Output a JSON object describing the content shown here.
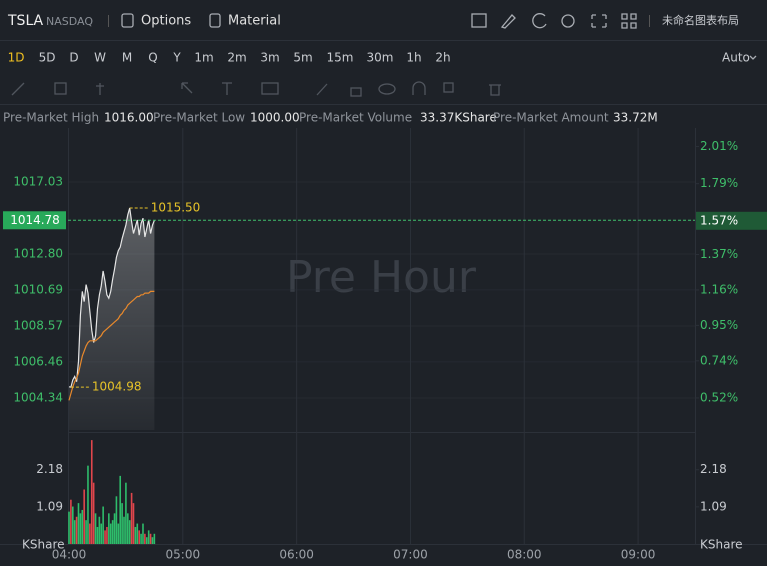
{
  "header": {
    "symbol": "TSLA",
    "exchange": "NASDAQ",
    "buttons": [
      "Options",
      "Material"
    ],
    "layout_name": "未命名图表布局"
  },
  "timeframes": {
    "items": [
      "1D",
      "5D",
      "D",
      "W",
      "M",
      "Q",
      "Y",
      "1m",
      "2m",
      "3m",
      "5m",
      "15m",
      "30m",
      "1h",
      "2h"
    ],
    "scale_mode": "Auto"
  },
  "info": [
    {
      "label": "Pre-Market High",
      "value": "1016.00"
    },
    {
      "label": "Pre-Market Low",
      "value": "1000.00"
    },
    {
      "label": "Pre-Market Volume",
      "value": "33.37KShare"
    },
    {
      "label": "Pre-Market Amount",
      "value": "33.72M"
    }
  ],
  "chart_data": {
    "type": "line",
    "watermark": "Pre Hour",
    "x": [
      "04:00",
      "04:01",
      "04:02",
      "04:03",
      "04:04",
      "04:05",
      "04:06",
      "04:07",
      "04:08",
      "04:09",
      "04:10",
      "04:11",
      "04:12",
      "04:13",
      "04:14",
      "04:15",
      "04:16",
      "04:17",
      "04:18",
      "04:19",
      "04:20",
      "04:21",
      "04:22",
      "04:23",
      "04:24",
      "04:25",
      "04:26",
      "04:27",
      "04:28",
      "04:29",
      "04:30",
      "04:31",
      "04:32",
      "04:33",
      "04:34",
      "04:35",
      "04:36",
      "04:37",
      "04:38",
      "04:39",
      "04:40",
      "04:41",
      "04:42",
      "04:43",
      "04:44",
      "04:45"
    ],
    "xlim": [
      "04:00",
      "09:30"
    ],
    "xticks": [
      "04:00",
      "05:00",
      "06:00",
      "07:00",
      "08:00",
      "09:00"
    ],
    "ylim": [
      1002.46,
      1020.2
    ],
    "yticks": [
      1004.34,
      1006.46,
      1008.57,
      1010.69,
      {
        "value": 1012.8,
        "label": "1012.80"
      },
      1017.03
    ],
    "y2lim": [
      0.33,
      2.12
    ],
    "y2ticks": [
      {
        "value": 0.52,
        "label": "0.52%"
      },
      {
        "value": 0.74,
        "label": "0.74%"
      },
      {
        "value": 0.95,
        "label": "0.95%"
      },
      {
        "value": 1.16,
        "label": "1.16%"
      },
      {
        "value": 1.37,
        "label": "1.37%"
      },
      {
        "value": 1.79,
        "label": "1.79%"
      },
      {
        "value": 2.01,
        "label": "2.01%"
      }
    ],
    "last_price": 1014.78,
    "last_change": {
      "value": 1.57,
      "label": "1.57%"
    },
    "series": [
      {
        "color": "#e6e6e6",
        "values": [
          1005.0,
          1004.98,
          1005.4,
          1005.6,
          1005.3,
          1006.5,
          1009.2,
          1010.6,
          1010.0,
          1011.0,
          1010.5,
          1009.4,
          1008.3,
          1007.6,
          1008.0,
          1009.6,
          1010.4,
          1010.9,
          1011.8,
          1011.2,
          1010.4,
          1010.2,
          1010.6,
          1011.3,
          1011.9,
          1012.6,
          1013.0,
          1013.2,
          1013.7,
          1014.1,
          1014.5,
          1015.1,
          1015.5,
          1014.7,
          1014.0,
          1014.4,
          1014.8,
          1013.9,
          1014.6,
          1014.9,
          1013.8,
          1014.3,
          1014.8,
          1014.0,
          1014.5,
          1014.78
        ]
      },
      {
        "color": "#e8892c",
        "values": [
          1004.2,
          1004.6,
          1005.0,
          1005.3,
          1005.5,
          1005.8,
          1006.3,
          1006.8,
          1007.1,
          1007.4,
          1007.6,
          1007.7,
          1007.7,
          1007.7,
          1007.7,
          1007.8,
          1007.9,
          1008.0,
          1008.2,
          1008.3,
          1008.4,
          1008.5,
          1008.6,
          1008.7,
          1008.8,
          1008.9,
          1009.0,
          1009.2,
          1009.3,
          1009.5,
          1009.6,
          1009.8,
          1009.9,
          1010.0,
          1010.1,
          1010.2,
          1010.3,
          1010.3,
          1010.4,
          1010.4,
          1010.5,
          1010.5,
          1010.5,
          1010.6,
          1010.6,
          1010.6
        ]
      }
    ],
    "annotations": [
      {
        "x": "04:32",
        "value": 1015.5,
        "label": "1015.50"
      },
      {
        "x": "04:01",
        "value": 1004.98,
        "label": "1004.98"
      }
    ],
    "volume": {
      "unit": "KShare",
      "ylim": [
        0,
        3.2
      ],
      "yticks": [
        1.09,
        2.18
      ],
      "values": [
        0.95,
        1.3,
        1.1,
        0.7,
        0.8,
        1.2,
        0.9,
        1.0,
        1.6,
        0.7,
        2.3,
        0.6,
        3.05,
        1.8,
        0.9,
        0.5,
        0.8,
        0.6,
        1.1,
        0.4,
        0.5,
        0.9,
        0.6,
        0.7,
        0.9,
        1.4,
        0.6,
        2.0,
        1.2,
        0.8,
        1.8,
        0.9,
        0.7,
        1.5,
        1.2,
        0.5,
        0.6,
        0.4,
        0.3,
        0.6,
        0.3,
        0.2,
        0.4,
        0.3,
        0.2,
        0.3
      ],
      "colors": [
        "#2ebd6b",
        "#e0464c",
        "#2ebd6b",
        "#2ebd6b",
        "#e0464c",
        "#2ebd6b",
        "#2ebd6b",
        "#2ebd6b",
        "#e0464c",
        "#2ebd6b",
        "#2ebd6b",
        "#e0464c",
        "#e0464c",
        "#e0464c",
        "#2ebd6b",
        "#2ebd6b",
        "#2ebd6b",
        "#2ebd6b",
        "#2ebd6b",
        "#e0464c",
        "#e0464c",
        "#2ebd6b",
        "#2ebd6b",
        "#2ebd6b",
        "#2ebd6b",
        "#2ebd6b",
        "#2ebd6b",
        "#2ebd6b",
        "#2ebd6b",
        "#2ebd6b",
        "#2ebd6b",
        "#2ebd6b",
        "#2ebd6b",
        "#e0464c",
        "#e0464c",
        "#2ebd6b",
        "#2ebd6b",
        "#e0464c",
        "#2ebd6b",
        "#2ebd6b",
        "#e0464c",
        "#2ebd6b",
        "#2ebd6b",
        "#e0464c",
        "#2ebd6b",
        "#2ebd6b"
      ]
    }
  }
}
